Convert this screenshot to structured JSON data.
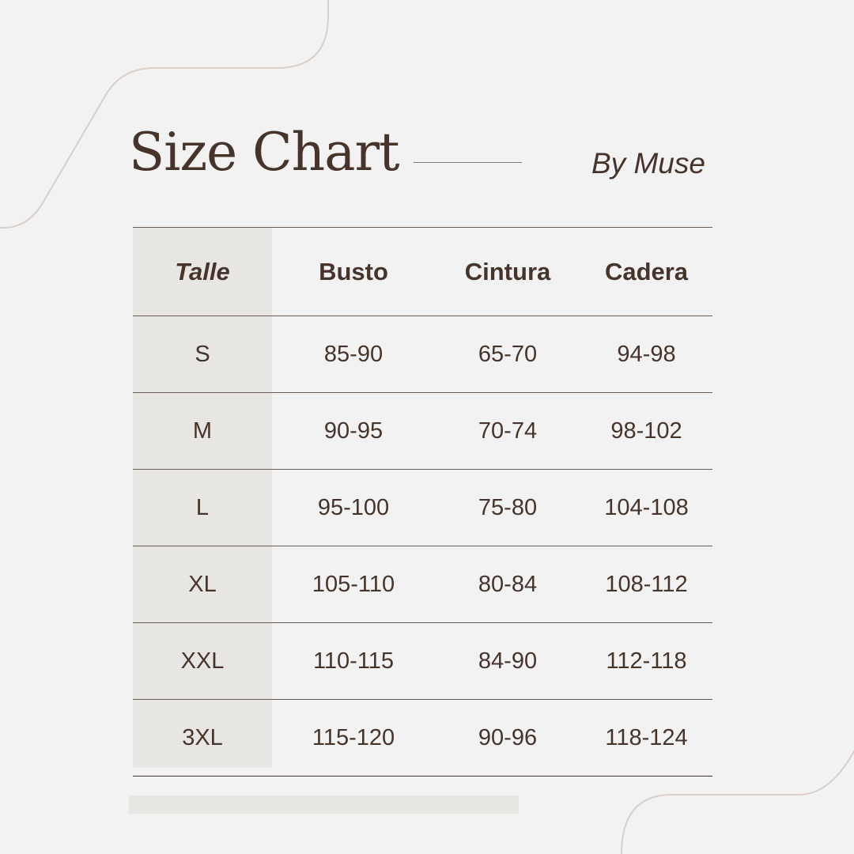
{
  "header": {
    "title": "Size Chart",
    "brand": "By Muse"
  },
  "table": {
    "columns": [
      "Talle",
      "Busto",
      "Cintura",
      "Cadera"
    ],
    "rows": [
      [
        "S",
        "85-90",
        "65-70",
        "94-98"
      ],
      [
        "M",
        "90-95",
        "70-74",
        "98-102"
      ],
      [
        "L",
        "95-100",
        "75-80",
        "104-108"
      ],
      [
        "XL",
        "105-110",
        "80-84",
        "108-112"
      ],
      [
        "XXL",
        "110-115",
        "84-90",
        "112-118"
      ],
      [
        "3XL",
        "115-120",
        "90-96",
        "118-124"
      ]
    ]
  },
  "colors": {
    "background": "#f2f2f2",
    "text": "#46342a",
    "shade": "#e8e6e2",
    "decor_line": "#d9cfc8"
  }
}
